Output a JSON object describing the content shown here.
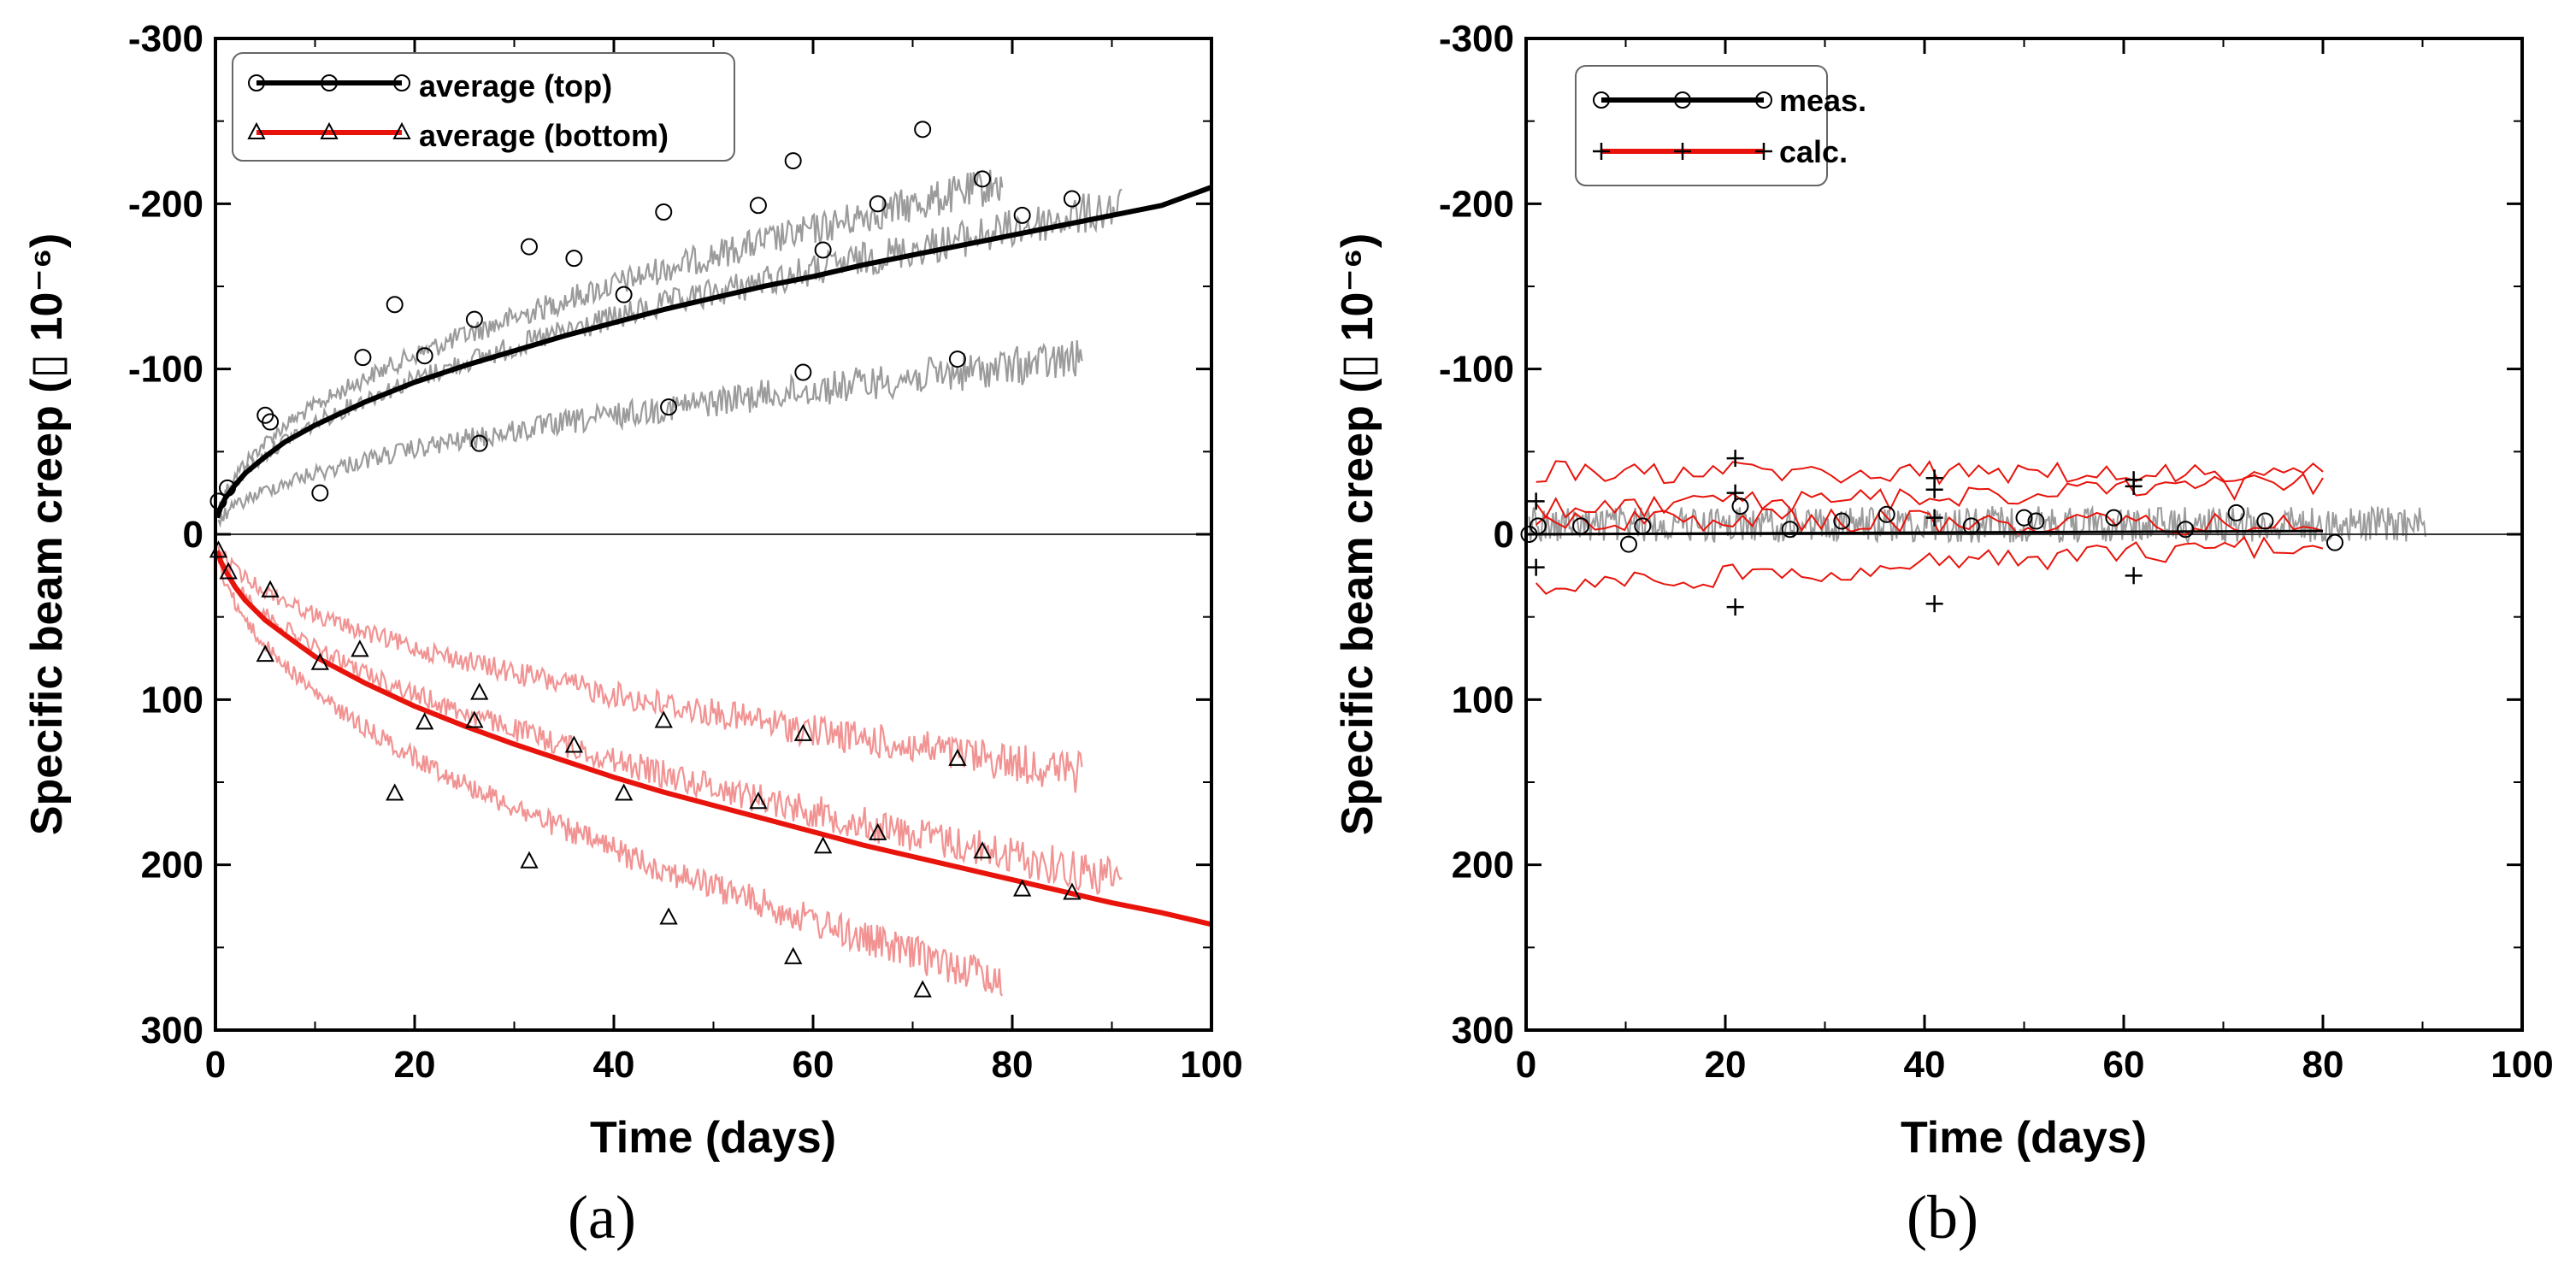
{
  "chart_data": [
    {
      "type": "scatter",
      "panel_label": "(a)",
      "xlabel": "Time (days)",
      "ylabel": "Specific beam creep (▯ 10⁻⁶)",
      "xlim": [
        0,
        100
      ],
      "ylim": [
        -300,
        300
      ],
      "y_inverted": true,
      "x_ticks": [
        "0",
        "20",
        "40",
        "60",
        "80",
        "100"
      ],
      "y_ticks": [
        "-300",
        "-200",
        "-100",
        "0",
        "100",
        "200",
        "300"
      ],
      "grid": false,
      "legend_position": "top-left",
      "series": [
        {
          "name": "average (top)",
          "color": "#000000",
          "marker": "circle",
          "fit_x": [
            0.2,
            0.5,
            1,
            2,
            3,
            5,
            7,
            10,
            15,
            20,
            25,
            30,
            35,
            40,
            45,
            50,
            55,
            60,
            65,
            70,
            75,
            80,
            85,
            90,
            95,
            100
          ],
          "fit_y": [
            -10,
            -16,
            -22,
            -30,
            -37,
            -47,
            -56,
            -66,
            -80,
            -92,
            -102,
            -111,
            -120,
            -128,
            -136,
            -143,
            -150,
            -156,
            -163,
            -169,
            -175,
            -181,
            -187,
            -193,
            -199,
            -210
          ],
          "markers_x": [
            0.3,
            1.2,
            5,
            5.5,
            10.5,
            14.8,
            18,
            21,
            26,
            26.5,
            31.5,
            36,
            41,
            45,
            45.5,
            54.5,
            58,
            59,
            61,
            66.5,
            71,
            74.5,
            77,
            81,
            86
          ],
          "markers_y": [
            -20,
            -28,
            -72,
            -68,
            -25,
            -107,
            -139,
            -108,
            -130,
            -55,
            -174,
            -167,
            -145,
            -195,
            -77,
            -199,
            -226,
            -98,
            -172,
            -200,
            -245,
            -106,
            -215,
            -193,
            -203
          ]
        },
        {
          "name": "average (bottom)",
          "color": "#e8140c",
          "marker": "triangle",
          "fit_x": [
            0.2,
            0.5,
            1,
            2,
            3,
            5,
            7,
            10,
            15,
            20,
            25,
            30,
            35,
            40,
            45,
            50,
            55,
            60,
            65,
            70,
            75,
            80,
            85,
            90,
            95,
            100
          ],
          "fit_y": [
            10,
            16,
            22,
            32,
            40,
            52,
            61,
            74,
            90,
            104,
            116,
            127,
            137,
            147,
            156,
            164,
            172,
            180,
            188,
            195,
            202,
            209,
            216,
            223,
            229,
            236
          ],
          "markers_x": [
            0.3,
            1.3,
            5,
            5.5,
            10.5,
            14.5,
            18,
            21,
            26,
            26.5,
            31.5,
            36,
            41,
            45,
            45.5,
            54.5,
            58,
            59,
            61,
            66.5,
            71,
            74.5,
            77,
            81,
            86
          ],
          "markers_y": [
            10,
            23,
            73,
            34,
            78,
            70,
            157,
            114,
            113,
            96,
            198,
            128,
            157,
            113,
            232,
            162,
            256,
            121,
            189,
            181,
            276,
            136,
            192,
            215,
            217
          ]
        }
      ]
    },
    {
      "type": "scatter",
      "panel_label": "(b)",
      "xlabel": "Time (days)",
      "ylabel": "Specific beam creep (▯ 10⁻⁶)",
      "xlim": [
        0,
        100
      ],
      "ylim": [
        -300,
        300
      ],
      "y_inverted": true,
      "x_ticks": [
        "0",
        "20",
        "40",
        "60",
        "80",
        "100"
      ],
      "y_ticks": [
        "-300",
        "-200",
        "-100",
        "0",
        "100",
        "200",
        "300"
      ],
      "grid": false,
      "legend_position": "top-left",
      "series": [
        {
          "name": "meas.",
          "color": "#000000",
          "marker": "circle",
          "markers_x": [
            0.3,
            1.2,
            5.5,
            10.3,
            11.7,
            21.5,
            26.5,
            31.7,
            36.2,
            44.7,
            50,
            51.2,
            59,
            66.2,
            71.3,
            74.2,
            81.2
          ],
          "markers_y": [
            0,
            -5,
            -5,
            6,
            -5,
            -17,
            -3,
            -8,
            -12,
            -5,
            -10,
            -8,
            -10,
            -3,
            -13,
            -8,
            5
          ]
        },
        {
          "name": "calc.",
          "color": "#e8140c",
          "marker": "plus",
          "markers_x": [
            1,
            1,
            21,
            21,
            21,
            41,
            41,
            41,
            41,
            61,
            61,
            61
          ],
          "markers_y": [
            -20,
            20,
            -46,
            -25,
            44,
            -34,
            -27,
            42,
            -10,
            -33,
            -29,
            25
          ]
        }
      ]
    }
  ]
}
